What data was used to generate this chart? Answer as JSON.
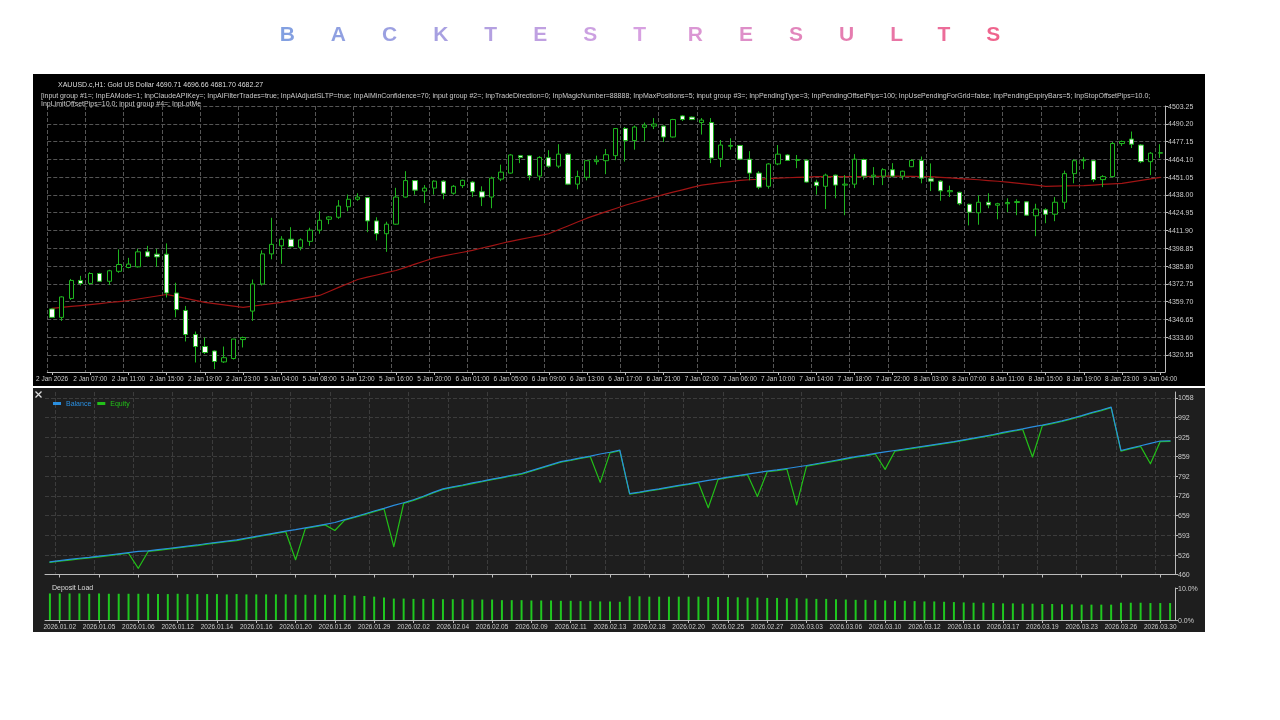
{
  "chart_data": [
    {
      "type": "candlestick",
      "title": "BACKTEST RESULTS",
      "subtitle": "XAUUSD.c,H1: Gold US Dollar 4690.71 4696.66 4681.70 4682.27",
      "annotations": [
        "[input group #1=; InpEAMode=1; InpClaudeAPIKey=; InpAIFilterTrades=true; InpAIAdjustSLTP=true; InpAIMinConfidence=70; input group #2=; InpTradeDirection=0; InpMagicNumber=88888; InpMaxPositions=5; input group #3=; InpPendingType=3; InpPendingOffsetPips=100; InpUsePendingForGrid=false; InpPendingExpiryBars=5; InpStopOffsetPips=10.0; InpLimitOffsetPips=10.0; input group #4=; InpLotMe"
      ],
      "categories": [
        "2 Jan 2026",
        null,
        null,
        null,
        "2 Jan 07:00",
        null,
        null,
        null,
        "2 Jan 11:00",
        null,
        null,
        null,
        "2 Jan 15:00",
        null,
        null,
        null,
        "2 Jan 19:00",
        null,
        null,
        null,
        "2 Jan 23:00",
        null,
        null,
        null,
        "5 Jan 04:00",
        null,
        null,
        null,
        "5 Jan 08:00",
        null,
        null,
        null,
        "5 Jan 12:00",
        null,
        null,
        null,
        "5 Jan 16:00",
        null,
        null,
        null,
        "5 Jan 20:00",
        null,
        null,
        null,
        "6 Jan 01:00",
        null,
        null,
        null,
        "6 Jan 05:00",
        null,
        null,
        null,
        "6 Jan 09:00",
        null,
        null,
        null,
        "6 Jan 13:00",
        null,
        null,
        null,
        "6 Jan 17:00",
        null,
        null,
        null,
        "6 Jan 21:00",
        null,
        null,
        null,
        "7 Jan 02:00",
        null,
        null,
        null,
        "7 Jan 06:00",
        null,
        null,
        null,
        "7 Jan 10:00",
        null,
        null,
        null,
        "7 Jan 14:00",
        null,
        null,
        null,
        "7 Jan 18:00",
        null,
        null,
        null,
        "7 Jan 22:00",
        null,
        null,
        null,
        "8 Jan 03:00",
        null,
        null,
        null,
        "8 Jan 07:00",
        null,
        null,
        null,
        "8 Jan 11:00",
        null,
        null,
        null,
        "8 Jan 15:00",
        null,
        null,
        null,
        "8 Jan 19:00",
        null,
        null,
        null,
        "8 Jan 23:00",
        null,
        null,
        null,
        "9 Jan 04:00"
      ],
      "series": [
        {
          "color": "#1fb51f",
          "ohlc": [
            [
              4354.3,
              4354.7,
              4347.7,
              4348.1
            ],
            [
              4348.1,
              4363.6,
              4345.5,
              4363.1
            ],
            [
              4362.0,
              4376.3,
              4360.9,
              4375.2
            ],
            [
              4375.2,
              4378.6,
              4371.5,
              4373.0
            ],
            [
              4373.0,
              4381.2,
              4371.9,
              4380.3
            ],
            [
              4380.3,
              4380.8,
              4374.1,
              4374.6
            ],
            [
              4374.6,
              4383.0,
              4371.9,
              4382.3
            ],
            [
              4381.9,
              4398.0,
              4380.8,
              4386.9
            ],
            [
              4384.7,
              4391.8,
              4384.1,
              4387.2
            ],
            [
              4385.2,
              4398.4,
              4384.7,
              4396.2
            ],
            [
              4396.2,
              4400.6,
              4392.2,
              4392.9
            ],
            [
              4394.5,
              4398.4,
              4385.2,
              4392.5
            ],
            [
              4394.5,
              4402.4,
              4362.7,
              4366.0
            ],
            [
              4366.0,
              4373.5,
              4348.1,
              4353.8
            ],
            [
              4353.2,
              4356.5,
              4330.4,
              4335.5
            ],
            [
              4335.5,
              4337.7,
              4315.0,
              4326.7
            ],
            [
              4326.7,
              4333.3,
              4321.2,
              4322.3
            ],
            [
              4323.4,
              4323.8,
              4310.1,
              4315.7
            ],
            [
              4315.4,
              4326.7,
              4314.6,
              4318.5
            ],
            [
              4317.9,
              4332.2,
              4317.2,
              4332.2
            ],
            [
              4331.8,
              4334.0,
              4326.0,
              4333.3
            ],
            [
              4352.7,
              4375.9,
              4345.5,
              4372.6
            ],
            [
              4372.6,
              4397.3,
              4371.5,
              4394.7
            ],
            [
              4394.7,
              4421.2,
              4390.7,
              4401.7
            ],
            [
              4400.6,
              4407.7,
              4387.4,
              4405.5
            ],
            [
              4405.5,
              4414.3,
              4399.5,
              4400.0
            ],
            [
              4399.5,
              4406.1,
              4397.3,
              4405.0
            ],
            [
              4403.9,
              4413.9,
              4400.6,
              4412.1
            ],
            [
              4412.1,
              4426.0,
              4409.5,
              4419.4
            ],
            [
              4420.1,
              4422.3,
              4416.5,
              4421.8
            ],
            [
              4421.6,
              4434.2,
              4420.5,
              4429.8
            ],
            [
              4429.3,
              4438.2,
              4426.0,
              4434.8
            ],
            [
              4434.8,
              4439.2,
              4433.7,
              4436.4
            ],
            [
              4436.0,
              4436.4,
              4410.6,
              4418.9
            ],
            [
              4418.9,
              4421.6,
              4404.6,
              4409.5
            ],
            [
              4409.5,
              4418.3,
              4396.2,
              4416.5
            ],
            [
              4416.5,
              4443.2,
              4416.1,
              4436.4
            ],
            [
              4436.4,
              4455.4,
              4436.0,
              4448.5
            ],
            [
              4448.5,
              4448.7,
              4438.2,
              4441.5
            ],
            [
              4440.8,
              4445.2,
              4432.0,
              4443.0
            ],
            [
              4443.0,
              4448.7,
              4438.2,
              4448.1
            ],
            [
              4448.1,
              4448.7,
              4434.8,
              4439.2
            ],
            [
              4439.2,
              4445.2,
              4438.2,
              4444.3
            ],
            [
              4444.8,
              4449.2,
              4443.0,
              4448.7
            ],
            [
              4447.4,
              4448.1,
              4436.4,
              4440.3
            ],
            [
              4440.3,
              4444.3,
              4429.8,
              4436.4
            ],
            [
              4436.4,
              4451.4,
              4428.2,
              4450.3
            ],
            [
              4449.6,
              4460.2,
              4448.1,
              4454.7
            ],
            [
              4454.0,
              4467.9,
              4453.6,
              4467.3
            ],
            [
              4466.8,
              4467.3,
              4461.3,
              4465.5
            ],
            [
              4466.8,
              4467.3,
              4448.7,
              4452.1
            ],
            [
              4451.8,
              4466.4,
              4448.7,
              4465.5
            ],
            [
              4465.3,
              4470.8,
              4458.0,
              4459.1
            ],
            [
              4459.1,
              4475.2,
              4457.6,
              4467.9
            ],
            [
              4467.9,
              4468.6,
              4445.2,
              4445.9
            ],
            [
              4445.9,
              4455.8,
              4442.1,
              4451.4
            ],
            [
              4450.9,
              4463.5,
              4448.7,
              4463.1
            ],
            [
              4462.4,
              4466.8,
              4460.2,
              4463.5
            ],
            [
              4463.1,
              4471.7,
              4453.2,
              4467.5
            ],
            [
              4466.8,
              4487.1,
              4463.5,
              4486.7
            ],
            [
              4486.7,
              4487.8,
              4462.4,
              4477.9
            ],
            [
              4477.9,
              4488.9,
              4471.2,
              4487.8
            ],
            [
              4487.6,
              4491.1,
              4477.4,
              4489.3
            ],
            [
              4488.5,
              4494.4,
              4486.3,
              4490.0
            ],
            [
              4488.5,
              4488.9,
              4476.8,
              4480.5
            ],
            [
              4480.5,
              4493.8,
              4480.1,
              4493.3
            ],
            [
              4496.0,
              4496.6,
              4492.2,
              4493.3
            ],
            [
              4495.1,
              4495.5,
              4492.9,
              4493.3
            ],
            [
              4491.1,
              4494.4,
              4482.3,
              4492.9
            ],
            [
              4491.1,
              4494.4,
              4461.3,
              4465.1
            ],
            [
              4464.6,
              4478.3,
              4458.4,
              4474.6
            ],
            [
              4473.7,
              4479.6,
              4471.2,
              4474.3
            ],
            [
              4474.3,
              4474.6,
              4463.5,
              4464.2
            ],
            [
              4464.2,
              4470.1,
              4448.7,
              4454.0
            ],
            [
              4454.0,
              4455.4,
              4442.1,
              4443.7
            ],
            [
              4444.3,
              4461.3,
              4442.6,
              4460.7
            ],
            [
              4460.7,
              4474.6,
              4459.8,
              4467.9
            ],
            [
              4467.3,
              4467.9,
              4462.9,
              4463.3
            ],
            [
              4463.3,
              4467.3,
              4457.6,
              4464.0
            ],
            [
              4463.5,
              4464.2,
              4447.0,
              4447.4
            ],
            [
              4447.4,
              4449.2,
              4438.2,
              4444.8
            ],
            [
              4444.3,
              4453.6,
              4427.6,
              4452.5
            ],
            [
              4452.5,
              4452.9,
              4435.5,
              4445.2
            ],
            [
              4445.2,
              4452.5,
              4423.1,
              4445.9
            ],
            [
              4445.9,
              4467.9,
              4443.0,
              4464.2
            ],
            [
              4464.0,
              4464.6,
              4449.2,
              4451.8
            ],
            [
              4451.4,
              4458.4,
              4445.2,
              4452.5
            ],
            [
              4451.8,
              4457.6,
              4445.2,
              4456.5
            ],
            [
              4456.5,
              4461.3,
              4450.9,
              4451.8
            ],
            [
              4451.8,
              4455.8,
              4449.2,
              4455.4
            ],
            [
              4458.7,
              4464.2,
              4458.4,
              4463.3
            ],
            [
              4463.3,
              4466.2,
              4446.5,
              4450.3
            ],
            [
              4449.8,
              4461.1,
              4440.8,
              4448.1
            ],
            [
              4448.1,
              4448.7,
              4433.7,
              4441.0
            ],
            [
              4440.3,
              4444.8,
              4436.4,
              4441.2
            ],
            [
              4439.9,
              4440.3,
              4430.4,
              4431.5
            ],
            [
              4431.1,
              4431.5,
              4415.6,
              4425.3
            ],
            [
              4424.9,
              4437.7,
              4416.1,
              4432.6
            ],
            [
              4432.6,
              4439.2,
              4428.2,
              4430.6
            ],
            [
              4430.4,
              4432.2,
              4420.1,
              4431.5
            ],
            [
              4431.5,
              4435.5,
              4425.3,
              4432.4
            ],
            [
              4432.4,
              4434.8,
              4423.1,
              4433.1
            ],
            [
              4432.9,
              4433.3,
              4422.7,
              4423.1
            ],
            [
              4422.7,
              4431.5,
              4407.7,
              4427.6
            ],
            [
              4427.1,
              4428.2,
              4417.2,
              4423.8
            ],
            [
              4423.8,
              4436.4,
              4418.7,
              4432.6
            ],
            [
              4432.6,
              4455.8,
              4427.6,
              4453.6
            ],
            [
              4453.6,
              4464.2,
              4446.5,
              4463.1
            ],
            [
              4463.1,
              4465.7,
              4456.9,
              4463.7
            ],
            [
              4463.1,
              4463.5,
              4447.4,
              4449.2
            ],
            [
              4449.2,
              4452.5,
              4443.7,
              4451.4
            ],
            [
              4451.4,
              4476.8,
              4450.9,
              4475.7
            ],
            [
              4475.7,
              4477.9,
              4473.9,
              4477.2
            ],
            [
              4479.0,
              4484.5,
              4472.4,
              4475.2
            ],
            [
              4474.6,
              4475.2,
              4461.3,
              4462.4
            ],
            [
              4462.4,
              4469.5,
              4452.5,
              4468.6
            ],
            [
              4468.6,
              4475.2,
              4465.1,
              4469.0
            ]
          ]
        },
        {
          "type": "line",
          "color": "#a01414",
          "values": [
            4354.7,
            4355.4,
            4356.1,
            4356.7,
            4357.4,
            4358.2,
            4359.0,
            4359.7,
            4360.5,
            4361.6,
            4362.7,
            4363.8,
            4364.9,
            4363.5,
            4362.0,
            4360.6,
            4359.1,
            4358.2,
            4357.3,
            4356.3,
            4355.4,
            4356.3,
            4357.3,
            4358.2,
            4359.1,
            4360.4,
            4361.7,
            4362.9,
            4364.2,
            4367.1,
            4370.1,
            4373.0,
            4375.9,
            4377.6,
            4379.2,
            4380.9,
            4382.5,
            4384.8,
            4387.2,
            4389.5,
            4391.8,
            4393.2,
            4394.6,
            4395.9,
            4397.3,
            4399.0,
            4400.6,
            4402.3,
            4403.9,
            4405.3,
            4406.7,
            4408.1,
            4409.5,
            4412.4,
            4415.2,
            4418.1,
            4420.9,
            4423.3,
            4425.7,
            4428.0,
            4430.4,
            4432.4,
            4434.3,
            4436.3,
            4438.2,
            4440.0,
            4441.7,
            4443.5,
            4445.2,
            4446.1,
            4447.0,
            4447.8,
            4448.7,
            4449.1,
            4449.5,
            4449.9,
            4450.3,
            4450.6,
            4450.9,
            4451.1,
            4451.4,
            4451.4,
            4451.4,
            4451.4,
            4451.4,
            4451.5,
            4451.6,
            4451.7,
            4451.8,
            4451.7,
            4451.6,
            4451.5,
            4451.4,
            4450.9,
            4450.5,
            4450.0,
            4449.6,
            4449.1,
            4448.5,
            4448.0,
            4447.4,
            4446.6,
            4445.9,
            4445.1,
            4444.3,
            4444.4,
            4444.6,
            4444.7,
            4444.8,
            4445.2,
            4445.7,
            4446.1,
            4446.5,
            4447.6,
            4448.7,
            4449.8,
            4450.9
          ]
        }
      ],
      "ylim": [
        4308,
        4503.25
      ],
      "yticks": [
        4320.55,
        {
          "value": 4333.6,
          "label": "4333.60"
        },
        4346.65,
        {
          "value": 4359.7,
          "label": "4359.70"
        },
        4372.75,
        {
          "value": 4385.8,
          "label": "4385.80"
        },
        4398.85,
        {
          "value": 4411.9,
          "label": "4411.90"
        },
        4424.95,
        {
          "value": 4438,
          "label": "4438.00"
        },
        4451.05,
        {
          "value": 4464.1,
          "label": "4464.10"
        },
        4477.15,
        {
          "value": 4490.2,
          "label": "4490.20"
        },
        4503.25
      ],
      "grid": true,
      "marker": "none"
    },
    {
      "type": "line",
      "categories": [
        null,
        "2026.01.02",
        null,
        null,
        null,
        "2026.01.05",
        null,
        null,
        null,
        "2026.01.06",
        null,
        null,
        null,
        "2026.01.12",
        null,
        null,
        null,
        "2026.01.14",
        null,
        null,
        null,
        "2026.01.16",
        null,
        null,
        null,
        "2026.01.20",
        null,
        null,
        null,
        "2026.01.26",
        null,
        null,
        null,
        "2026.01.29",
        null,
        null,
        null,
        "2026.02.02",
        null,
        null,
        null,
        "2026.02.04",
        null,
        null,
        null,
        "2026.02.05",
        null,
        null,
        null,
        "2026.02.09",
        null,
        null,
        null,
        "2026.02.11",
        null,
        null,
        null,
        "2026.02.13",
        null,
        null,
        null,
        "2026.02.18",
        null,
        null,
        null,
        "2026.02.20",
        null,
        null,
        null,
        "2026.02.25",
        null,
        null,
        null,
        "2026.02.27",
        null,
        null,
        null,
        "2026.03.03",
        null,
        null,
        null,
        "2026.03.06",
        null,
        null,
        null,
        "2026.03.10",
        null,
        null,
        null,
        "2026.03.12",
        null,
        null,
        null,
        "2026.03.16",
        null,
        null,
        null,
        "2026.03.17",
        null,
        null,
        null,
        "2026.03.19",
        null,
        null,
        null,
        "2026.03.23",
        null,
        null,
        null,
        "2026.03.26",
        null,
        null,
        null,
        "2026.03.30",
        null
      ],
      "series": [
        {
          "name": "Balance",
          "color": "#2a8fe0",
          "values": [
            503,
            507,
            511,
            515,
            518,
            522,
            526,
            530,
            534,
            538,
            540,
            544,
            548,
            552,
            556,
            560,
            565,
            569,
            573,
            577,
            583,
            589,
            595,
            601,
            607,
            612,
            618,
            624,
            630,
            636,
            646,
            655,
            665,
            675,
            684,
            694,
            703,
            713,
            725,
            738,
            750,
            757,
            763,
            770,
            776,
            783,
            789,
            796,
            802,
            812,
            822,
            832,
            842,
            848,
            855,
            861,
            868,
            874,
            881,
            734,
            739,
            745,
            750,
            756,
            762,
            767,
            773,
            779,
            784,
            790,
            795,
            800,
            805,
            810,
            814,
            819,
            824,
            829,
            835,
            841,
            847,
            853,
            859,
            864,
            870,
            875,
            880,
            885,
            890,
            895,
            900,
            905,
            910,
            916,
            922,
            928,
            934,
            941,
            947,
            953,
            960,
            966,
            973,
            980,
            989,
            998,
            1008,
            1017,
            1027,
            880,
            888,
            896,
            904,
            912,
            913
          ]
        },
        {
          "name": "Equity",
          "color": "#22c018",
          "values": [
            501,
            505,
            509,
            513,
            516,
            520,
            524,
            528,
            532,
            481,
            538,
            542,
            546,
            550,
            554,
            558,
            563,
            567,
            571,
            575,
            581,
            587,
            593,
            599,
            605,
            510,
            616,
            622,
            628,
            609,
            644,
            653,
            663,
            673,
            682,
            554,
            701,
            711,
            723,
            736,
            748,
            755,
            761,
            768,
            774,
            781,
            787,
            794,
            800,
            810,
            820,
            830,
            840,
            846,
            853,
            859,
            772,
            872,
            879,
            732,
            737,
            743,
            748,
            754,
            760,
            765,
            771,
            686,
            782,
            788,
            793,
            798,
            724,
            808,
            812,
            817,
            696,
            827,
            833,
            839,
            845,
            851,
            857,
            862,
            868,
            816,
            878,
            883,
            888,
            893,
            898,
            903,
            908,
            914,
            920,
            926,
            932,
            939,
            945,
            951,
            858,
            964,
            971,
            978,
            987,
            996,
            1006,
            1015,
            1025,
            878,
            886,
            894,
            835,
            910,
            911
          ]
        }
      ],
      "ylim": [
        460,
        1078
      ],
      "yticks": [
        460,
        526,
        593,
        659,
        726,
        792,
        859,
        925,
        992,
        1058
      ],
      "tick_labels": "y",
      "grid": true,
      "legend": "top left",
      "marker": "none"
    },
    {
      "type": "bar",
      "title": "Deposit Load",
      "categories": [
        null,
        "2026.01.02",
        null,
        null,
        null,
        "2026.01.05",
        null,
        null,
        null,
        "2026.01.06",
        null,
        null,
        null,
        "2026.01.12",
        null,
        null,
        null,
        "2026.01.14",
        null,
        null,
        null,
        "2026.01.16",
        null,
        null,
        null,
        "2026.01.20",
        null,
        null,
        null,
        "2026.01.26",
        null,
        null,
        null,
        "2026.01.29",
        null,
        null,
        null,
        "2026.02.02",
        null,
        null,
        null,
        "2026.02.04",
        null,
        null,
        null,
        "2026.02.05",
        null,
        null,
        null,
        "2026.02.09",
        null,
        null,
        null,
        "2026.02.11",
        null,
        null,
        null,
        "2026.02.13",
        null,
        null,
        null,
        "2026.02.18",
        null,
        null,
        null,
        "2026.02.20",
        null,
        null,
        null,
        "2026.02.25",
        null,
        null,
        null,
        "2026.02.27",
        null,
        null,
        null,
        "2026.03.03",
        null,
        null,
        null,
        "2026.03.06",
        null,
        null,
        null,
        "2026.03.10",
        null,
        null,
        null,
        "2026.03.12",
        null,
        null,
        null,
        "2026.03.16",
        null,
        null,
        null,
        "2026.03.17",
        null,
        null,
        null,
        "2026.03.19",
        null,
        null,
        null,
        "2026.03.23",
        null,
        null,
        null,
        "2026.03.26",
        null,
        null,
        null,
        "2026.03.30",
        null
      ],
      "color": "#1fc81f",
      "values": [
        8.3,
        8.3,
        8.3,
        8.3,
        8.2,
        8.3,
        8.2,
        8.2,
        8.2,
        8.2,
        8.2,
        8.1,
        8.1,
        8.2,
        8.1,
        8.1,
        8.1,
        8.1,
        8.0,
        8.1,
        8.0,
        8.0,
        8.0,
        8.0,
        8.0,
        7.9,
        7.9,
        7.9,
        7.9,
        7.9,
        7.8,
        7.6,
        7.5,
        7.3,
        7.0,
        6.7,
        6.7,
        6.6,
        6.6,
        6.6,
        6.5,
        6.5,
        6.5,
        6.4,
        6.4,
        6.4,
        6.2,
        6.2,
        6.2,
        6.1,
        6.1,
        6.1,
        6.0,
        6.0,
        5.9,
        5.9,
        5.8,
        5.8,
        5.7,
        7.4,
        7.4,
        7.3,
        7.3,
        7.3,
        7.3,
        7.3,
        7.3,
        7.2,
        7.2,
        7.2,
        7.1,
        7.0,
        7.0,
        6.9,
        6.9,
        6.8,
        6.8,
        6.7,
        6.6,
        6.6,
        6.5,
        6.4,
        6.3,
        6.3,
        6.2,
        6.1,
        6.0,
        6.0,
        5.9,
        5.8,
        5.8,
        5.7,
        5.6,
        5.5,
        5.4,
        5.4,
        5.3,
        5.2,
        5.2,
        5.1,
        5.1,
        5.0,
        5.0,
        4.9,
        4.9,
        4.8,
        4.8,
        4.8,
        4.8,
        5.4,
        5.4,
        5.4,
        5.3,
        5.3,
        5.3
      ],
      "ylim": [
        0,
        10
      ],
      "yticks": [
        {
          "value": 0,
          "label": "0.0%"
        },
        {
          "value": 10,
          "label": "10.0%"
        }
      ]
    }
  ]
}
